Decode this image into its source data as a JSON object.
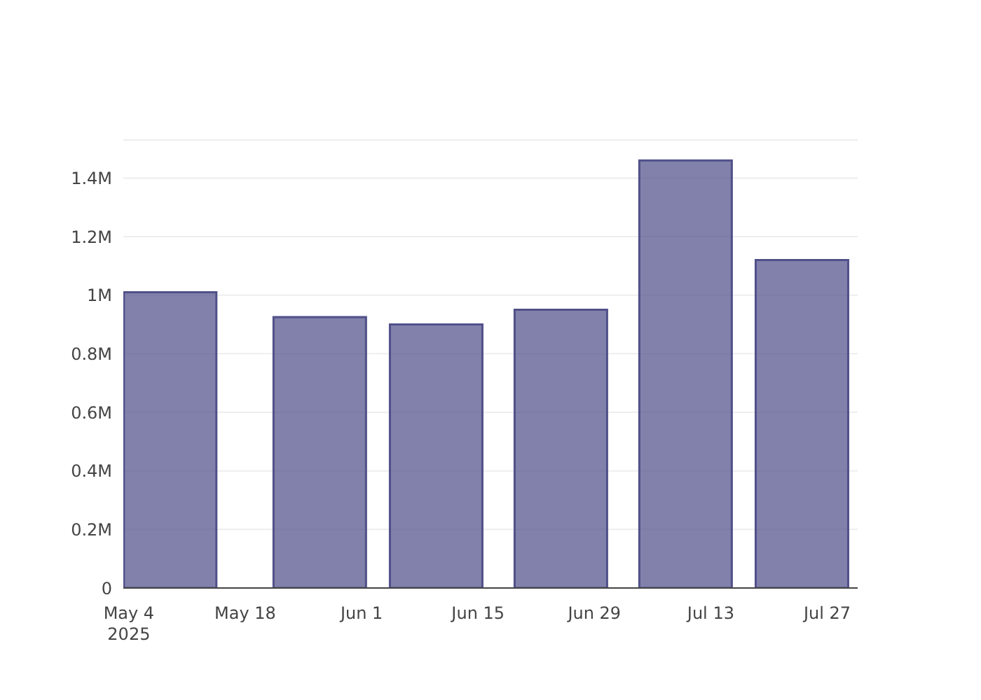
{
  "chart_data": {
    "type": "bar",
    "x": [
      "2025-05-09",
      "2025-05-27",
      "2025-06-10",
      "2025-06-25",
      "2025-07-10",
      "2025-07-24"
    ],
    "values": [
      1010000,
      925000,
      900000,
      950000,
      1460000,
      1120000
    ],
    "color": "#50508a",
    "xlim": [
      "2025-05-03T08:00",
      "2025-07-30T16:00"
    ],
    "xticks": [
      {
        "value": "2025-05-04",
        "label": "May 4\n2025"
      },
      {
        "value": "2025-05-18",
        "label": "May 18"
      },
      {
        "value": "2025-06-01",
        "label": "Jun 1"
      },
      {
        "value": "2025-06-15",
        "label": "Jun 15"
      },
      {
        "value": "2025-06-29",
        "label": "Jun 29"
      },
      {
        "value": "2025-07-13",
        "label": "Jul 13"
      },
      {
        "value": "2025-07-27",
        "label": "Jul 27"
      }
    ],
    "ylim": [
      0,
      1530000
    ],
    "yticks": [
      {
        "value": 0,
        "label": "0"
      },
      {
        "value": 200000,
        "label": "0.2M"
      },
      {
        "value": 400000,
        "label": "0.4M"
      },
      {
        "value": 600000,
        "label": "0.6M"
      },
      {
        "value": 800000,
        "label": "0.8M"
      },
      {
        "value": 1000000,
        "label": "1M"
      },
      {
        "value": 1200000,
        "label": "1.2M"
      },
      {
        "value": 1400000,
        "label": "1.4M"
      }
    ],
    "grid": "y"
  }
}
